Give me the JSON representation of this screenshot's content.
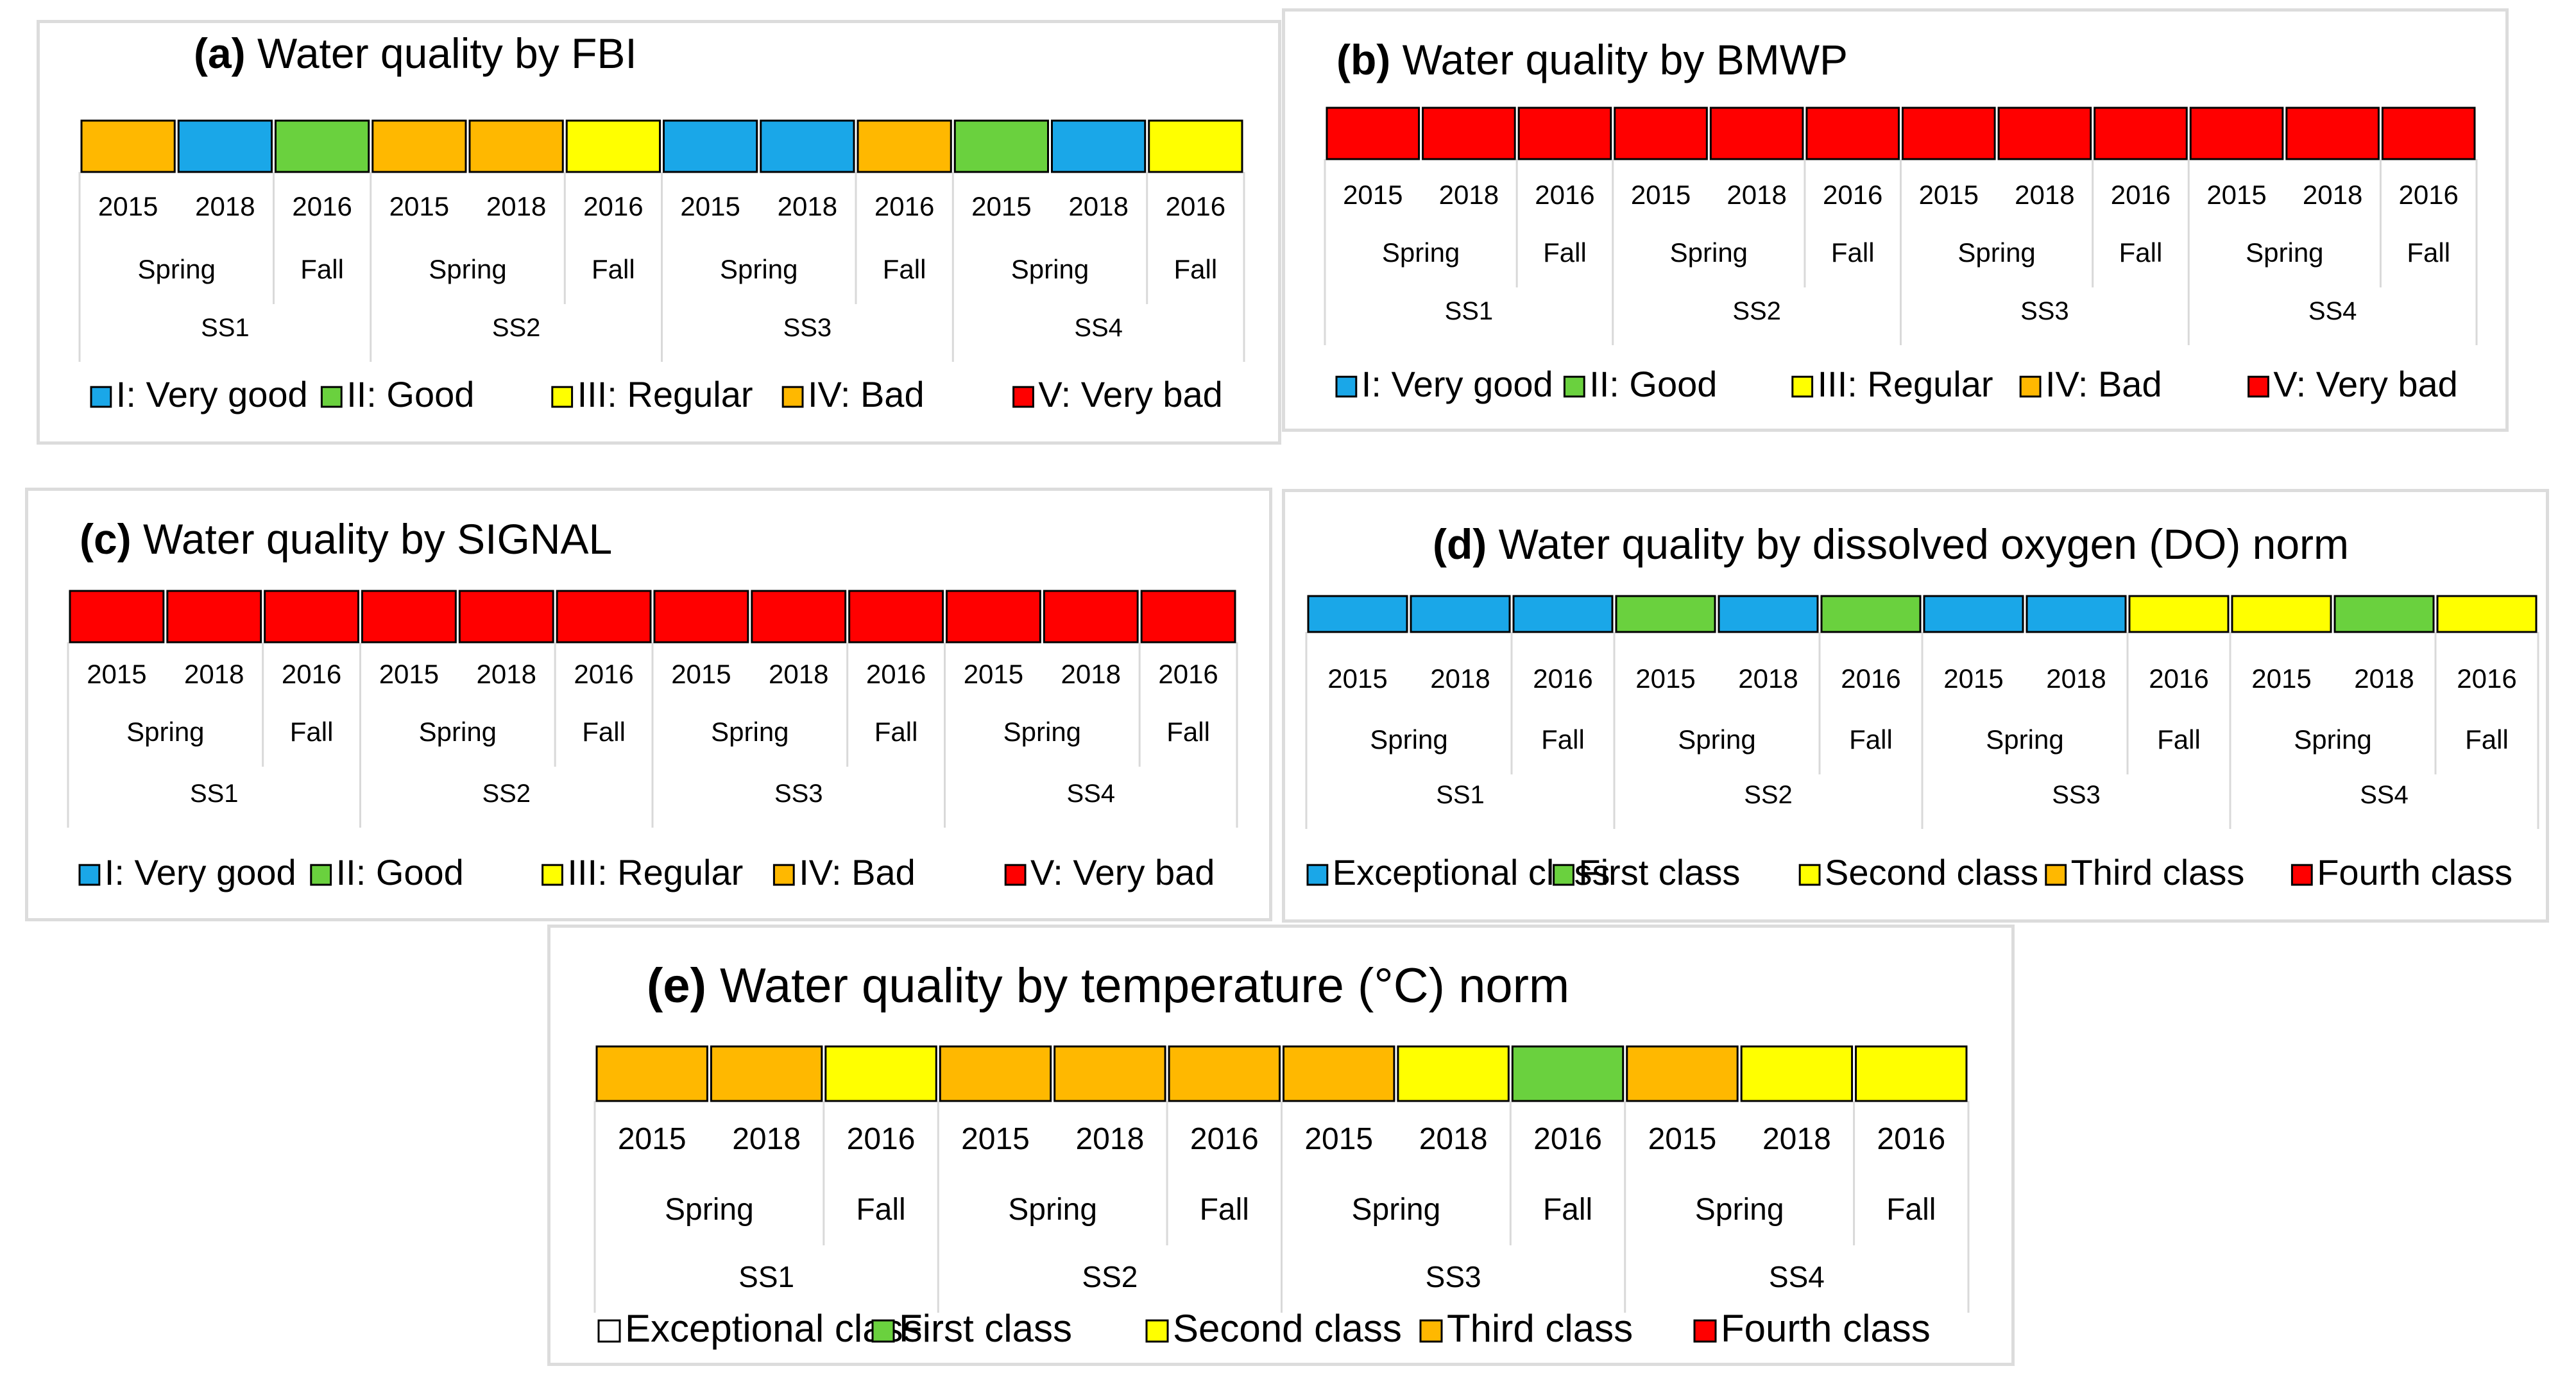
{
  "colors": {
    "I": "#1aa7e8",
    "II": "#6ad13e",
    "III": "#ffff00",
    "IV": "#ffb800",
    "V": "#ff0000",
    "exceptional_e": "#ffffff"
  },
  "chart_data": [
    {
      "type": "table",
      "id": "a",
      "title_prefix": "(a)",
      "title_rest": " Water quality by FBI",
      "sites": [
        "SS1",
        "SS2",
        "SS3",
        "SS4"
      ],
      "seasons": [
        "Spring",
        "Fall"
      ],
      "years": [
        "2015",
        "2018",
        "2016"
      ],
      "classes": [
        "IV",
        "I",
        "II",
        "IV",
        "IV",
        "III",
        "I",
        "I",
        "IV",
        "II",
        "I",
        "III"
      ],
      "legend": [
        {
          "key": "I",
          "label": "I: Very good"
        },
        {
          "key": "II",
          "label": "II: Good"
        },
        {
          "key": "III",
          "label": "III: Regular"
        },
        {
          "key": "IV",
          "label": "IV: Bad"
        },
        {
          "key": "V",
          "label": "V: Very bad"
        }
      ]
    },
    {
      "type": "table",
      "id": "b",
      "title_prefix": "(b)",
      "title_rest": " Water quality by BMWP",
      "sites": [
        "SS1",
        "SS2",
        "SS3",
        "SS4"
      ],
      "seasons": [
        "Spring",
        "Fall"
      ],
      "years": [
        "2015",
        "2018",
        "2016"
      ],
      "classes": [
        "V",
        "V",
        "V",
        "V",
        "V",
        "V",
        "V",
        "V",
        "V",
        "V",
        "V",
        "V"
      ],
      "legend": [
        {
          "key": "I",
          "label": "I: Very good"
        },
        {
          "key": "II",
          "label": "II: Good"
        },
        {
          "key": "III",
          "label": "III: Regular"
        },
        {
          "key": "IV",
          "label": "IV: Bad"
        },
        {
          "key": "V",
          "label": "V: Very bad"
        }
      ]
    },
    {
      "type": "table",
      "id": "c",
      "title_prefix": "(c)",
      "title_rest": " Water quality by SIGNAL",
      "sites": [
        "SS1",
        "SS2",
        "SS3",
        "SS4"
      ],
      "seasons": [
        "Spring",
        "Fall"
      ],
      "years": [
        "2015",
        "2018",
        "2016"
      ],
      "classes": [
        "V",
        "V",
        "V",
        "V",
        "V",
        "V",
        "V",
        "V",
        "V",
        "V",
        "V",
        "V"
      ],
      "legend": [
        {
          "key": "I",
          "label": "I: Very good"
        },
        {
          "key": "II",
          "label": "II: Good"
        },
        {
          "key": "III",
          "label": "III: Regular"
        },
        {
          "key": "IV",
          "label": "IV: Bad"
        },
        {
          "key": "V",
          "label": "V: Very bad"
        }
      ]
    },
    {
      "type": "table",
      "id": "d",
      "title_prefix": "(d)",
      "title_rest": " Water quality by dissolved oxygen (DO) norm",
      "sites": [
        "SS1",
        "SS2",
        "SS3",
        "SS4"
      ],
      "seasons": [
        "Spring",
        "Fall"
      ],
      "years": [
        "2015",
        "2018",
        "2016"
      ],
      "classes": [
        "I",
        "I",
        "I",
        "II",
        "I",
        "II",
        "I",
        "I",
        "III",
        "III",
        "II",
        "III"
      ],
      "legend": [
        {
          "key": "I",
          "label": "Exceptional class"
        },
        {
          "key": "II",
          "label": "First class"
        },
        {
          "key": "III",
          "label": "Second class"
        },
        {
          "key": "IV",
          "label": "Third class"
        },
        {
          "key": "V",
          "label": "Fourth class"
        }
      ]
    },
    {
      "type": "table",
      "id": "e",
      "title_prefix": "(e)",
      "title_rest": " Water quality by temperature (°C) norm",
      "sites": [
        "SS1",
        "SS2",
        "SS3",
        "SS4"
      ],
      "seasons": [
        "Spring",
        "Fall"
      ],
      "years": [
        "2015",
        "2018",
        "2016"
      ],
      "classes": [
        "IV",
        "IV",
        "III",
        "IV",
        "IV",
        "IV",
        "IV",
        "III",
        "II",
        "IV",
        "III",
        "III"
      ],
      "legend": [
        {
          "key": "exceptional_e",
          "label": "Exceptional class"
        },
        {
          "key": "II",
          "label": "First class"
        },
        {
          "key": "III",
          "label": "Second class"
        },
        {
          "key": "IV",
          "label": "Third class"
        },
        {
          "key": "V",
          "label": "Fourth class"
        }
      ]
    }
  ]
}
